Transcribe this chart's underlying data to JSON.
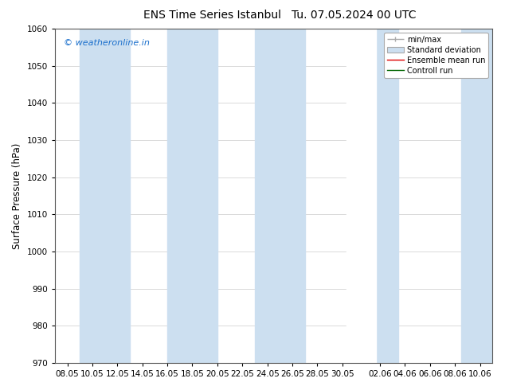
{
  "title_left": "ENS Time Series Istanbul",
  "title_right": "Tu. 07.05.2024 00 UTC",
  "ylabel": "Surface Pressure (hPa)",
  "ylim": [
    970,
    1060
  ],
  "yticks": [
    970,
    980,
    990,
    1000,
    1010,
    1020,
    1030,
    1040,
    1050,
    1060
  ],
  "x_tick_labels": [
    "08.05",
    "10.05",
    "12.05",
    "14.05",
    "16.05",
    "18.05",
    "20.05",
    "22.05",
    "24.05",
    "26.05",
    "28.05",
    "30.05",
    "02.06",
    "04.06",
    "06.06",
    "08.06",
    "10.06"
  ],
  "copyright_text": "© weatheronline.in",
  "copyright_color": "#1a6fcc",
  "legend_entries": [
    "min/max",
    "Standard deviation",
    "Ensemble mean run",
    "Controll run"
  ],
  "band_color": "#ccdff0",
  "band_alpha": 1.0,
  "background_color": "#ffffff",
  "grid_color": "#cccccc",
  "title_fontsize": 10,
  "tick_fontsize": 7.5,
  "ylabel_fontsize": 8.5,
  "copyright_fontsize": 8
}
